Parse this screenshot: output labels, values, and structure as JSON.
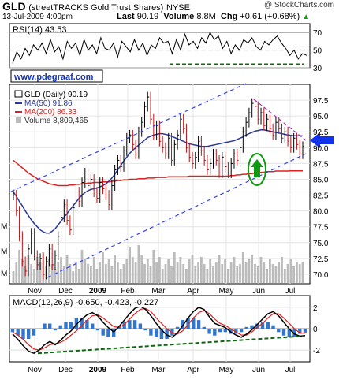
{
  "header": {
    "symbol": "GLD",
    "name": "(streetTRACKS Gold Trust Shares)",
    "exchange": "NYSE",
    "source": "@ StockCharts.com",
    "date": "13-Jul-2009 4:00pm",
    "last_label": "Last",
    "last_value": "90.19",
    "volume_label": "Volume",
    "volume_value": "8.8M",
    "chg_label": "Chg",
    "chg_value": "+0.61 (+0.68%)",
    "chg_arrow": "▲"
  },
  "watermark": "www.pdegraaf.com",
  "colors": {
    "price": "#000000",
    "ma50": "#2a3a9a",
    "ma200": "#dd2222",
    "channel": "#3344ee",
    "volume": "#bbbbbb",
    "ellipse": "#119911",
    "wedge": "#aa33aa",
    "support": "#116611",
    "arrow": "#1133ee"
  },
  "chart_data": [
    {
      "type": "line",
      "name": "rsi-panel",
      "title": "RSI(14) 43.53",
      "series": [
        {
          "name": "RSI(14)",
          "values": [
            35,
            48,
            40,
            52,
            44,
            56,
            50,
            58,
            46,
            62,
            48,
            54,
            40,
            60,
            52,
            58,
            44,
            62,
            50,
            56,
            46,
            64,
            52,
            50,
            58,
            42,
            60,
            54,
            48,
            62,
            50,
            58,
            44,
            56,
            52,
            64,
            58,
            60,
            46,
            62,
            50,
            68,
            56,
            60,
            52,
            64,
            58,
            70,
            62,
            66,
            52,
            60,
            46,
            56,
            50,
            62,
            58,
            64,
            54,
            50,
            60,
            56,
            62,
            66,
            58,
            52,
            44,
            50,
            40,
            46,
            44
          ]
        }
      ],
      "ylim": [
        30,
        80
      ],
      "ticks": [
        "70",
        "50",
        "30"
      ],
      "grid": true,
      "reference_lines": [
        70,
        50,
        30
      ]
    },
    {
      "type": "line",
      "name": "price-panel",
      "legend": [
        {
          "label": "GLD (Daily) 90.19"
        },
        {
          "label": "MA(50) 91.86"
        },
        {
          "label": "MA(200) 86.33"
        },
        {
          "label": "Volume 8,809,465"
        }
      ],
      "ylim": [
        68.5,
        100
      ],
      "y_ticks": [
        "97.5",
        "95.0",
        "92.5",
        "90.0",
        "87.5",
        "85.0",
        "82.5",
        "80.0",
        "77.5",
        "75.0",
        "72.5",
        "70.0"
      ],
      "volume_scale_labels": [
        "M",
        "M",
        "M"
      ],
      "x_ticks": [
        "Nov",
        "Dec",
        "2009",
        "Feb",
        "Mar",
        "Apr",
        "May",
        "Jun",
        "Jul"
      ],
      "price": [
        82.5,
        80.0,
        76.0,
        72.0,
        70.5,
        74.0,
        76.5,
        73.0,
        71.5,
        72.5,
        70.0,
        72.0,
        74.0,
        71.5,
        73.0,
        76.0,
        79.0,
        81.0,
        78.5,
        77.0,
        80.5,
        83.0,
        81.5,
        84.5,
        86.0,
        84.0,
        85.0,
        83.0,
        82.0,
        84.5,
        83.5,
        82.5,
        81.0,
        84.0,
        86.5,
        88.0,
        87.0,
        89.5,
        91.5,
        92.0,
        90.5,
        89.0,
        92.5,
        94.0,
        96.5,
        98.0,
        94.5,
        92.0,
        93.5,
        91.0,
        90.0,
        89.0,
        91.5,
        88.0,
        90.5,
        92.0,
        94.5,
        93.0,
        90.0,
        88.5,
        87.5,
        88.5,
        91.0,
        89.5,
        88.0,
        86.5,
        87.5,
        89.0,
        88.0,
        86.0,
        88.5,
        87.0,
        86.0,
        87.5,
        89.0,
        88.0,
        90.0,
        92.5,
        94.0,
        95.5,
        97.0,
        96.5,
        94.5,
        95.5,
        93.5,
        94.5,
        93.0,
        92.0,
        94.0,
        93.0,
        91.5,
        92.5,
        91.0,
        90.0,
        91.5,
        90.5,
        89.0,
        90.19
      ],
      "ma50": [
        83.0,
        82.3,
        81.5,
        80.8,
        80.0,
        79.3,
        78.6,
        78.0,
        77.5,
        77.0,
        76.7,
        76.5,
        76.5,
        76.8,
        77.2,
        77.8,
        78.4,
        79.0,
        79.6,
        80.2,
        80.8,
        81.4,
        82.0,
        82.5,
        82.9,
        83.2,
        83.4,
        83.5,
        83.6,
        83.8,
        84.0,
        84.3,
        84.7,
        85.2,
        85.8,
        86.5,
        87.2,
        87.9,
        88.5,
        89.1,
        89.6,
        90.0,
        90.4,
        90.8,
        91.2,
        91.6,
        91.8,
        92.0,
        92.1,
        92.2,
        92.2,
        92.1,
        92.0,
        91.8,
        91.6,
        91.4,
        91.2,
        91.0,
        90.8,
        90.6,
        90.5,
        90.4,
        90.3,
        90.2,
        90.2,
        90.2,
        90.3,
        90.4,
        90.5,
        90.6,
        90.7,
        90.8,
        90.9,
        91.0,
        91.1,
        91.3,
        91.5,
        91.7,
        92.0,
        92.2,
        92.4,
        92.6,
        92.7,
        92.8,
        92.8,
        92.7,
        92.6,
        92.5,
        92.4,
        92.3,
        92.2,
        92.1,
        92.0,
        91.95,
        91.9,
        91.88,
        91.87,
        91.86
      ],
      "ma200": [
        88.0,
        87.6,
        87.2,
        86.8,
        86.4,
        86.0,
        85.7,
        85.4,
        85.1,
        84.9,
        84.7,
        84.5,
        84.3,
        84.2,
        84.1,
        84.0,
        84.0,
        84.0,
        84.0,
        84.1,
        84.1,
        84.2,
        84.2,
        84.3,
        84.3,
        84.4,
        84.4,
        84.5,
        84.5,
        84.5,
        84.6,
        84.6,
        84.6,
        84.7,
        84.7,
        84.8,
        84.8,
        84.9,
        84.9,
        85.0,
        85.0,
        85.0,
        85.1,
        85.1,
        85.1,
        85.2,
        85.2,
        85.2,
        85.3,
        85.3,
        85.3,
        85.3,
        85.4,
        85.4,
        85.4,
        85.4,
        85.4,
        85.4,
        85.4,
        85.5,
        85.5,
        85.5,
        85.5,
        85.5,
        85.5,
        85.5,
        85.5,
        85.5,
        85.5,
        85.5,
        85.5,
        85.5,
        85.5,
        85.6,
        85.6,
        85.7,
        85.7,
        85.8,
        85.8,
        85.9,
        85.9,
        86.0,
        86.0,
        86.1,
        86.1,
        86.2,
        86.2,
        86.2,
        86.3,
        86.3,
        86.3,
        86.3,
        86.3,
        86.33,
        86.33,
        86.33,
        86.33,
        86.33
      ],
      "volume": [
        5,
        9,
        14,
        10,
        7,
        12,
        8,
        6,
        11,
        9,
        13,
        7,
        10,
        8,
        6,
        9,
        11,
        7,
        12,
        8,
        5,
        9,
        6,
        14,
        10,
        8,
        7,
        11,
        6,
        9,
        13,
        8,
        10,
        7,
        12,
        9,
        6,
        8,
        10,
        15,
        11,
        9,
        16,
        12,
        8,
        10,
        7,
        14,
        9,
        11,
        6,
        8,
        10,
        7,
        13,
        9,
        11,
        8,
        6,
        10,
        12,
        7,
        9,
        11,
        8,
        6,
        10,
        7,
        9,
        12,
        8,
        10,
        6,
        9,
        11,
        7,
        8,
        13,
        9,
        10,
        12,
        8,
        7,
        11,
        9,
        6,
        10,
        8,
        7,
        9,
        11,
        6,
        8,
        10,
        7,
        9,
        8,
        9
      ]
    },
    {
      "type": "line",
      "name": "macd-panel",
      "title": "MACD(12,26,9) -0.650, -0.423, -0.227",
      "y_ticks": [
        "2",
        "0",
        "-2"
      ],
      "ylim": [
        -2.8,
        2.8
      ],
      "x_ticks": [
        "Nov",
        "Dec",
        "2009",
        "Feb",
        "Mar",
        "Apr",
        "May",
        "Jun",
        "Jul"
      ],
      "macd": [
        -0.5,
        -1.0,
        -1.6,
        -2.1,
        -2.3,
        -2.0,
        -1.5,
        -1.2,
        -1.5,
        -1.1,
        -0.6,
        -0.2,
        0.4,
        0.9,
        1.3,
        1.5,
        1.2,
        0.6,
        0.1,
        -0.3,
        0.2,
        0.8,
        1.4,
        1.9,
        2.1,
        1.8,
        1.2,
        0.5,
        -0.1,
        -0.6,
        -0.8,
        -0.4,
        0.3,
        1.0,
        1.6,
        2.0,
        1.8,
        1.1,
        0.5,
        0.3,
        0.1,
        -0.3,
        -0.6,
        -0.8,
        -0.5,
        -0.1,
        0.4,
        0.9,
        1.4,
        1.6,
        1.2,
        0.6,
        0.0,
        -0.5,
        -0.7,
        -0.65
      ],
      "signal": [
        -0.3,
        -0.6,
        -1.0,
        -1.5,
        -1.9,
        -2.0,
        -1.8,
        -1.5,
        -1.4,
        -1.3,
        -1.0,
        -0.6,
        -0.2,
        0.3,
        0.8,
        1.2,
        1.3,
        1.0,
        0.6,
        0.2,
        0.1,
        0.4,
        0.9,
        1.4,
        1.8,
        1.9,
        1.6,
        1.0,
        0.5,
        0.0,
        -0.4,
        -0.5,
        -0.2,
        0.4,
        1.0,
        1.5,
        1.7,
        1.4,
        0.9,
        0.5,
        0.3,
        0.0,
        -0.3,
        -0.6,
        -0.6,
        -0.3,
        0.1,
        0.5,
        1.0,
        1.4,
        1.4,
        1.0,
        0.5,
        0.0,
        -0.4,
        -0.423
      ],
      "histogram_color_positive": "#3377cc",
      "histogram_color_negative": "#3377cc"
    }
  ]
}
